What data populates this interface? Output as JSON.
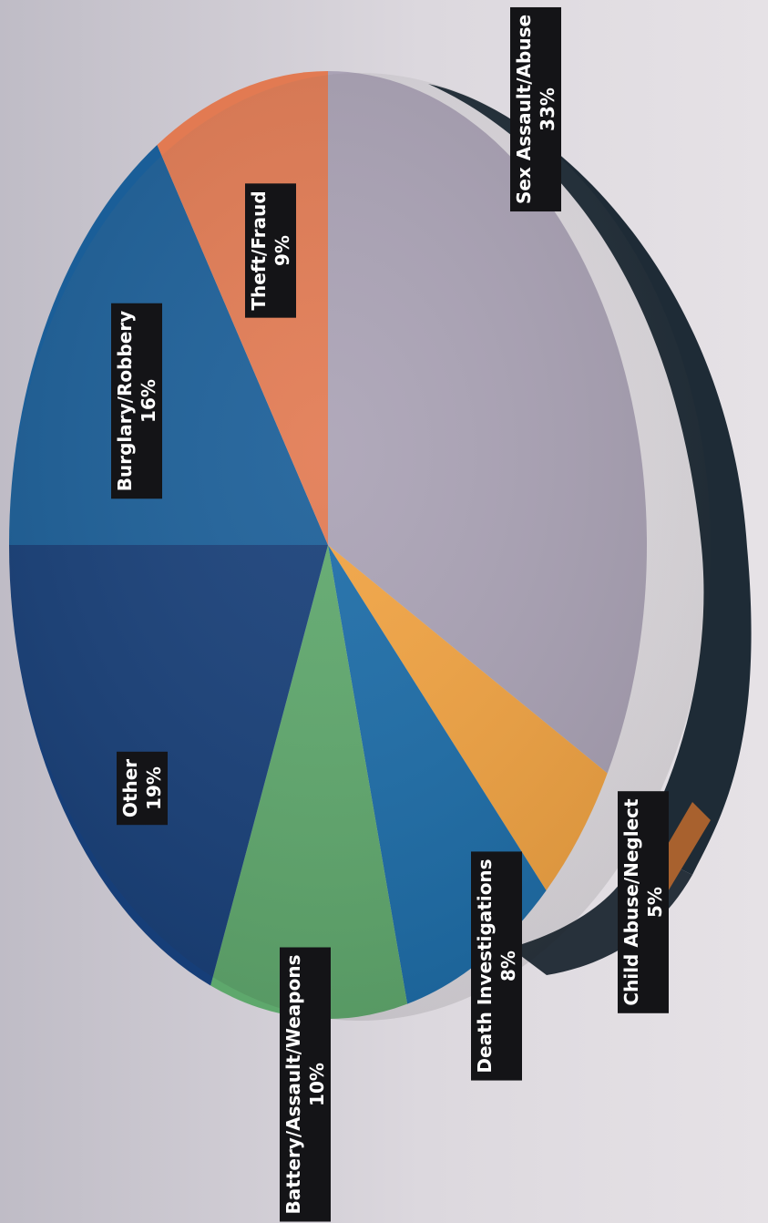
{
  "chart_data": {
    "type": "pie",
    "title": "",
    "categories": [
      "Sex Assault/Abuse",
      "Child Abuse/Neglect",
      "Death Investigations",
      "Battery/Assault/Weapons",
      "Other",
      "Burglary/Robbery",
      "Theft/Fraud"
    ],
    "values": [
      33,
      5,
      8,
      10,
      19,
      16,
      9
    ],
    "value_labels": [
      "33%",
      "5%",
      "8%",
      "10%",
      "19%",
      "16%",
      "9%"
    ],
    "colors": [
      "#aaa2b5",
      "#f2a341",
      "#1b6ca8",
      "#5ea86c",
      "#163e78",
      "#1a5e98",
      "#e27a52"
    ],
    "extruded_edge_color": "#1e2b36",
    "orientation": "rotated 90 degrees clockwise"
  }
}
